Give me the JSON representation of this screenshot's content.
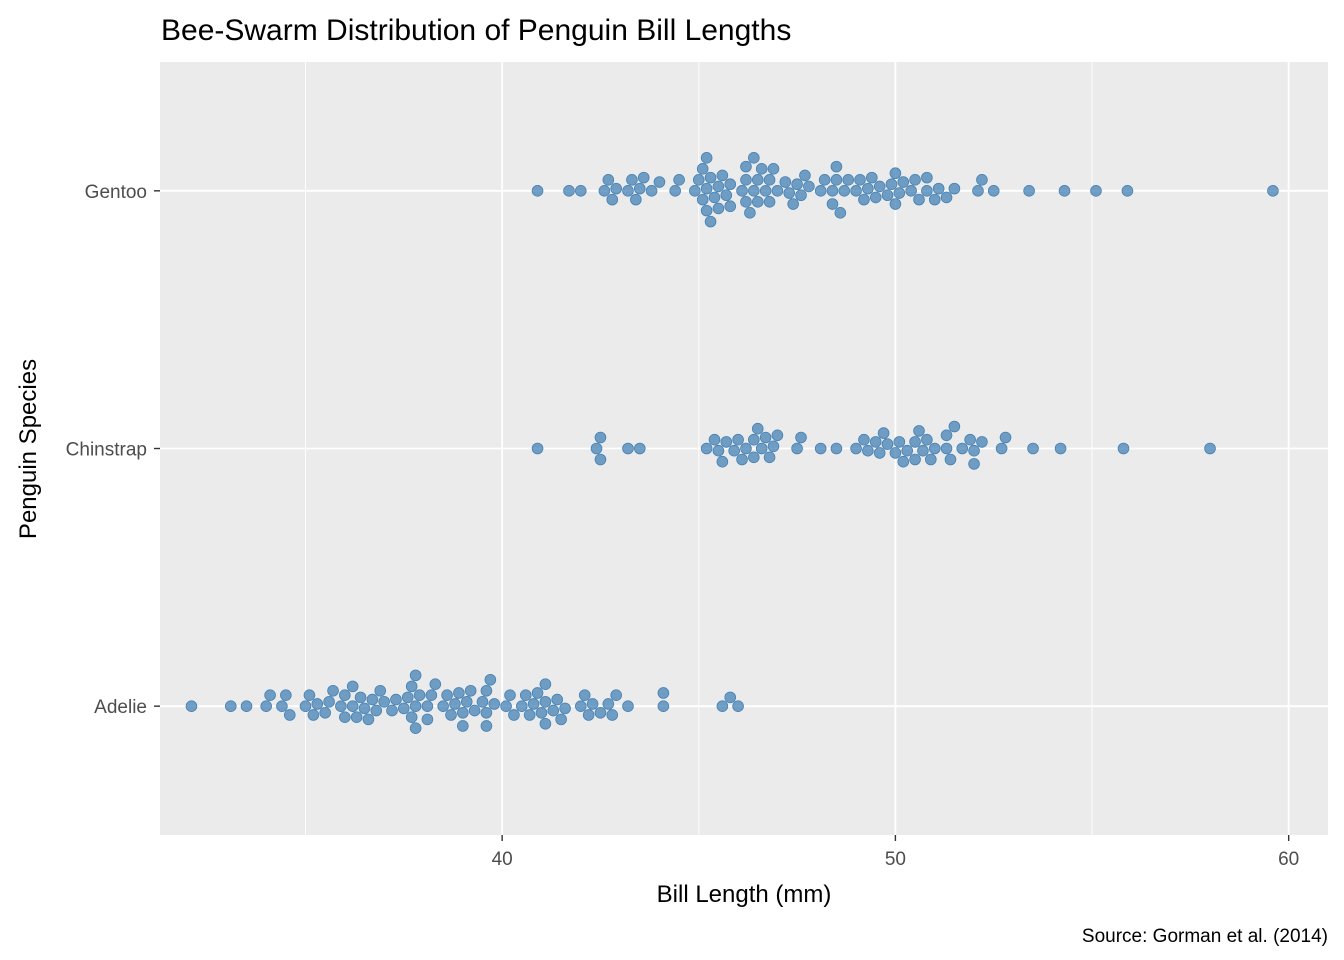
{
  "chart_data": {
    "type": "scatter",
    "subtype": "beeswarm",
    "title": "Bee-Swarm Distribution of Penguin Bill Lengths",
    "xlabel": "Bill Length (mm)",
    "ylabel": "Penguin Species",
    "caption": "Source: Gorman et al. (2014)",
    "xlim": [
      31.3,
      61.0
    ],
    "x_ticks": [
      40,
      50,
      60
    ],
    "x_tick_labels": [
      "40",
      "50",
      "60"
    ],
    "categories": [
      "Gentoo",
      "Chinstrap",
      "Adelie"
    ],
    "grid": true,
    "legend": "none",
    "colors": {
      "point": "#4682b4",
      "panel_background": "#ebebeb",
      "grid": "#ffffff"
    },
    "series": [
      {
        "category": "Gentoo",
        "values": [
          40.9,
          41.7,
          42.0,
          42.6,
          42.7,
          42.8,
          42.9,
          43.2,
          43.3,
          43.4,
          43.5,
          43.6,
          43.8,
          44.0,
          44.4,
          44.5,
          44.9,
          45.0,
          45.1,
          45.1,
          45.2,
          45.2,
          45.2,
          45.3,
          45.3,
          45.4,
          45.5,
          45.5,
          45.6,
          45.7,
          45.8,
          45.8,
          46.1,
          46.2,
          46.2,
          46.2,
          46.3,
          46.4,
          46.4,
          46.5,
          46.5,
          46.6,
          46.7,
          46.8,
          46.8,
          46.9,
          47.0,
          47.2,
          47.3,
          47.4,
          47.5,
          47.6,
          47.7,
          47.8,
          48.1,
          48.2,
          48.4,
          48.4,
          48.5,
          48.5,
          48.6,
          48.7,
          48.8,
          49.0,
          49.1,
          49.2,
          49.3,
          49.4,
          49.5,
          49.6,
          49.8,
          49.9,
          50.0,
          50.0,
          50.1,
          50.2,
          50.4,
          50.5,
          50.6,
          50.8,
          50.8,
          51.0,
          51.1,
          51.3,
          51.5,
          52.1,
          52.2,
          52.5,
          53.4,
          54.3,
          55.1,
          55.9,
          59.6
        ]
      },
      {
        "category": "Chinstrap",
        "values": [
          40.9,
          42.4,
          42.5,
          42.5,
          43.2,
          43.5,
          45.2,
          45.4,
          45.5,
          45.6,
          45.7,
          45.9,
          46.0,
          46.1,
          46.2,
          46.4,
          46.4,
          46.5,
          46.6,
          46.7,
          46.8,
          46.9,
          47.0,
          47.5,
          47.6,
          48.1,
          48.5,
          49.0,
          49.2,
          49.3,
          49.5,
          49.6,
          49.7,
          49.8,
          50.0,
          50.1,
          50.2,
          50.3,
          50.5,
          50.5,
          50.6,
          50.7,
          50.8,
          50.9,
          51.0,
          51.3,
          51.3,
          51.4,
          51.5,
          51.7,
          51.9,
          52.0,
          52.0,
          52.2,
          52.7,
          52.8,
          53.5,
          54.2,
          55.8,
          58.0
        ]
      },
      {
        "category": "Adelie",
        "values": [
          32.1,
          33.1,
          33.5,
          34.0,
          34.1,
          34.4,
          34.5,
          34.6,
          35.0,
          35.1,
          35.2,
          35.3,
          35.5,
          35.6,
          35.7,
          35.9,
          36.0,
          36.0,
          36.2,
          36.2,
          36.3,
          36.4,
          36.5,
          36.6,
          36.7,
          36.8,
          36.9,
          37.0,
          37.2,
          37.3,
          37.5,
          37.6,
          37.7,
          37.7,
          37.8,
          37.8,
          37.8,
          37.9,
          38.1,
          38.1,
          38.2,
          38.3,
          38.5,
          38.6,
          38.7,
          38.8,
          38.9,
          39.0,
          39.0,
          39.1,
          39.2,
          39.3,
          39.5,
          39.6,
          39.6,
          39.6,
          39.7,
          39.8,
          40.1,
          40.2,
          40.3,
          40.5,
          40.6,
          40.7,
          40.8,
          40.9,
          41.0,
          41.1,
          41.1,
          41.1,
          41.3,
          41.4,
          41.5,
          41.6,
          42.0,
          42.1,
          42.2,
          42.3,
          42.5,
          42.7,
          42.8,
          42.9,
          43.2,
          44.1,
          44.1,
          45.6,
          45.8,
          46.0
        ]
      }
    ]
  }
}
